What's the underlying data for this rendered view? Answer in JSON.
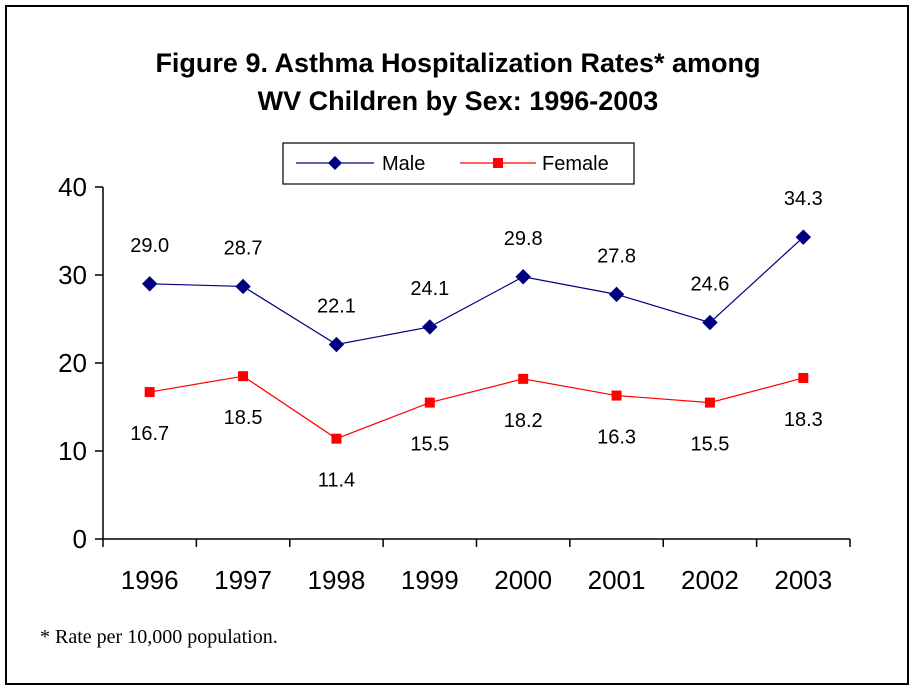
{
  "chart_data": {
    "type": "line",
    "title": [
      "Figure 9.  Asthma Hospitalization Rates* among",
      "WV Children by Sex: 1996-2003"
    ],
    "xlabel": "",
    "ylabel": "",
    "categories": [
      "1996",
      "1997",
      "1998",
      "1999",
      "2000",
      "2001",
      "2002",
      "2003"
    ],
    "ylim": [
      0,
      40
    ],
    "yticks": [
      0,
      10,
      20,
      30,
      40
    ],
    "grid": false,
    "legend_position": "top-center",
    "series": [
      {
        "name": "Male",
        "color": "#000080",
        "marker": "diamond",
        "values": [
          29.0,
          28.7,
          22.1,
          24.1,
          29.8,
          27.8,
          24.6,
          34.3
        ],
        "labels": [
          "29.0",
          "28.7",
          "22.1",
          "24.1",
          "29.8",
          "27.8",
          "24.6",
          "34.3"
        ],
        "label_position": "above"
      },
      {
        "name": "Female",
        "color": "#ff0000",
        "marker": "square",
        "values": [
          16.7,
          18.5,
          11.4,
          15.5,
          18.2,
          16.3,
          15.5,
          18.3
        ],
        "labels": [
          "16.7",
          "18.5",
          "11.4",
          "15.5",
          "18.2",
          "16.3",
          "15.5",
          "18.3"
        ],
        "label_position": "below"
      }
    ]
  },
  "footnote": "* Rate per 10,000 population."
}
